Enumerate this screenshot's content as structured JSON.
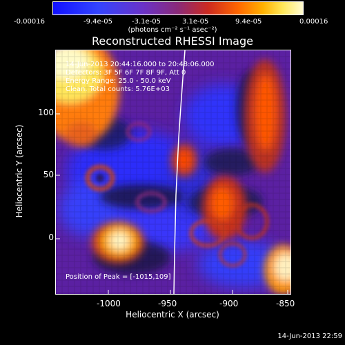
{
  "colorbar": {
    "labels": [
      "-0.00016",
      "-9.4e-05",
      "-3.1e-05",
      "3.1e-05",
      "9.4e-05",
      "0.00016"
    ],
    "unit": "(photons cm⁻² s⁻¹ asec⁻²)"
  },
  "image": {
    "title": "Reconstructed RHESSI Image",
    "info_lines": [
      "14-Jun-2013 20:44:16.000 to 20:48:06.000",
      "Detectors: 3F 5F 6F 7F 8F 9F, Att 0",
      "Energy Range: 25.0 - 50.0 keV",
      "Clean. Total counts: 5.76E+03"
    ],
    "peak_text": "Position of Peak = [-1015,109]",
    "timestamp": "14-Jun-2013 22:59"
  },
  "axes": {
    "x_label": "Heliocentric X (arcsec)",
    "y_label": "Heliocentric Y (arcsec)",
    "x_ticks": [
      "-1000",
      "-950",
      "-900",
      "-850"
    ],
    "y_ticks": [
      "100",
      "50",
      "0"
    ]
  },
  "colors": {
    "background": "#000000",
    "foreground": "#ffffff",
    "limb": "#ffffff"
  }
}
